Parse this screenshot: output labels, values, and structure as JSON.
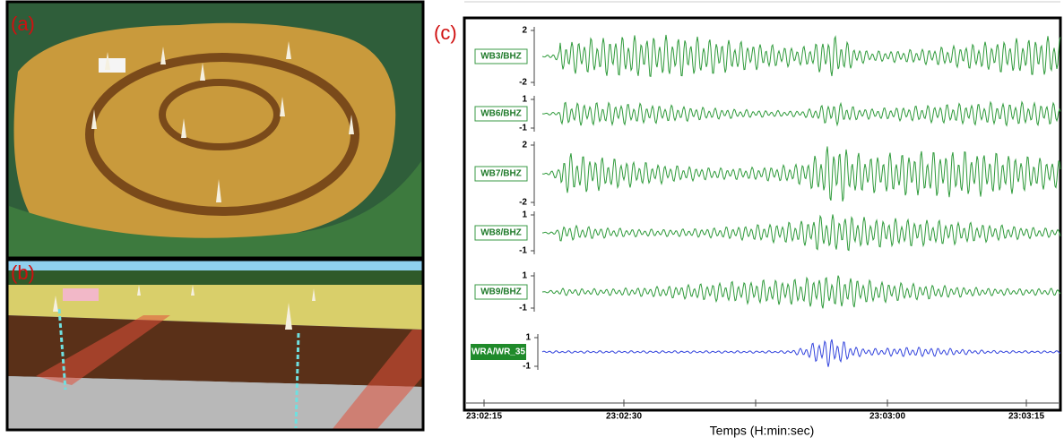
{
  "panels": {
    "labels": [
      "(a)",
      "(b)",
      "(c)"
    ]
  },
  "seismogram": {
    "traces": [
      {
        "name": "WB3/BHZ",
        "ticks": [
          2,
          -2
        ],
        "color": "#2e9a3a"
      },
      {
        "name": "WB6/BHZ",
        "ticks": [
          1,
          -1
        ],
        "color": "#2e9a3a"
      },
      {
        "name": "WB7/BHZ",
        "ticks": [
          2,
          -2
        ],
        "color": "#2e9a3a"
      },
      {
        "name": "WB8/BHZ",
        "ticks": [
          1,
          -1
        ],
        "color": "#2e9a3a"
      },
      {
        "name": "WB9/BHZ",
        "ticks": [
          1,
          -1
        ],
        "color": "#2e9a3a"
      },
      {
        "name": "WRA/WR_35",
        "ticks": [
          1,
          -1
        ],
        "color": "#3344dd"
      }
    ],
    "x_ticks": [
      "23:02:15",
      "23:02:30",
      null,
      "23:03:00",
      "23:03:15"
    ],
    "x_label": "Temps (H:min:sec)"
  }
}
